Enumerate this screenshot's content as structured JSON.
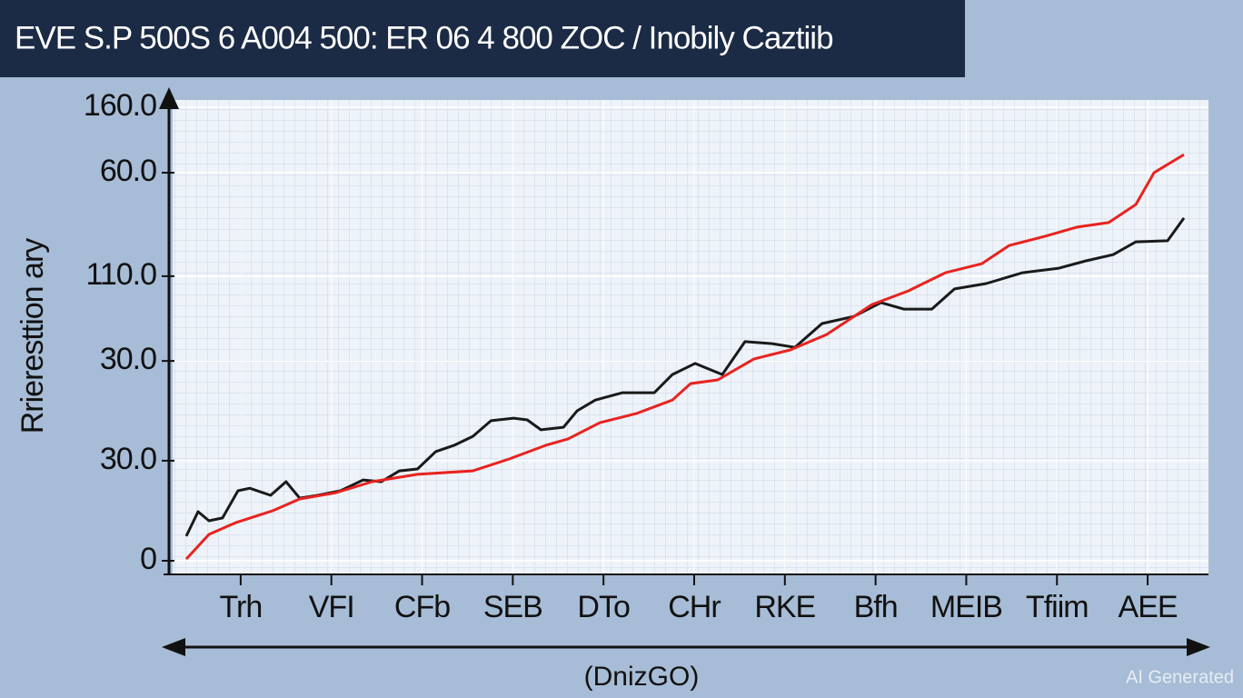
{
  "chart_data": {
    "type": "line",
    "title": "EVE S.P 500S 6 A004 500: ER 06 4 800 ZOC / Inobily Caztiib",
    "y_label": "Rrieresttion ary",
    "x_label": "(DnizGO)",
    "watermark": "AI Generated",
    "ylim": [
      0,
      160
    ],
    "yticks": [
      0,
      {
        "value": 35.3,
        "label": "30.0"
      },
      {
        "value": 70.5,
        "label": "30.0"
      },
      {
        "value": 100.4,
        "label": "110.0"
      },
      {
        "value": 136.9,
        "label": "60.0"
      },
      {
        "value": 160,
        "label": "160.0"
      }
    ],
    "xlim": [
      -0.6,
      10.4
    ],
    "xticks": [
      {
        "value": 0,
        "label": "Trh"
      },
      {
        "value": 1,
        "label": "VFI"
      },
      {
        "value": 2,
        "label": "CFb"
      },
      {
        "value": 3,
        "label": "SEB"
      },
      {
        "value": 4,
        "label": "DTo"
      },
      {
        "value": 5,
        "label": "CHr"
      },
      {
        "value": 6,
        "label": "RKE"
      },
      {
        "value": 7,
        "label": "Bfh"
      },
      {
        "value": 8,
        "label": "MEIB"
      },
      {
        "value": 9,
        "label": "Tfiim"
      },
      {
        "value": 10,
        "label": "AEE"
      }
    ],
    "grid": true,
    "series": [
      {
        "color": "#1a1a1a",
        "x": [
          -0.6,
          -0.47,
          -0.35,
          -0.2,
          -0.03,
          0.1,
          0.33,
          0.5,
          0.65,
          0.85,
          1.1,
          1.35,
          1.55,
          1.75,
          1.95,
          2.15,
          2.35,
          2.56,
          2.76,
          3.01,
          3.16,
          3.31,
          3.56,
          3.71,
          3.91,
          4.21,
          4.56,
          4.76,
          5.01,
          5.31,
          5.56,
          5.86,
          6.11,
          6.41,
          6.76,
          7.06,
          7.31,
          7.62,
          7.87,
          8.22,
          8.62,
          9.02,
          9.32,
          9.62,
          9.87,
          10.22,
          10.4
        ],
        "values": [
          8.7,
          17.3,
          14.1,
          15.1,
          24.7,
          25.6,
          23.1,
          27.9,
          22.1,
          23.1,
          24.7,
          28.5,
          27.9,
          31.7,
          32.4,
          38.5,
          40.7,
          43.9,
          49.4,
          50.3,
          49.7,
          46.2,
          47.1,
          52.9,
          56.7,
          59.3,
          59.3,
          65.7,
          69.6,
          65.7,
          77.3,
          76.6,
          75.3,
          83.7,
          86.2,
          91.1,
          88.8,
          88.8,
          95.9,
          97.8,
          101.6,
          103.2,
          105.8,
          108.0,
          112.5,
          112.9,
          120.9
        ]
      },
      {
        "color": "#e8231f",
        "x": [
          -0.6,
          -0.35,
          -0.05,
          0.35,
          0.65,
          1.05,
          1.45,
          1.95,
          2.56,
          2.96,
          3.36,
          3.61,
          3.96,
          4.36,
          4.76,
          4.96,
          5.26,
          5.66,
          6.06,
          6.46,
          6.96,
          7.36,
          7.77,
          8.17,
          8.47,
          8.87,
          9.22,
          9.57,
          9.87,
          10.07,
          10.4
        ],
        "values": [
          0.6,
          9.3,
          13.5,
          17.6,
          21.8,
          24.0,
          27.9,
          30.5,
          31.7,
          35.9,
          40.7,
          43.0,
          48.7,
          51.9,
          56.7,
          62.5,
          63.8,
          71.2,
          74.4,
          79.8,
          90.4,
          95.2,
          101.6,
          104.8,
          111.2,
          114.5,
          117.7,
          119.3,
          125.7,
          136.9,
          143.3
        ]
      }
    ]
  }
}
